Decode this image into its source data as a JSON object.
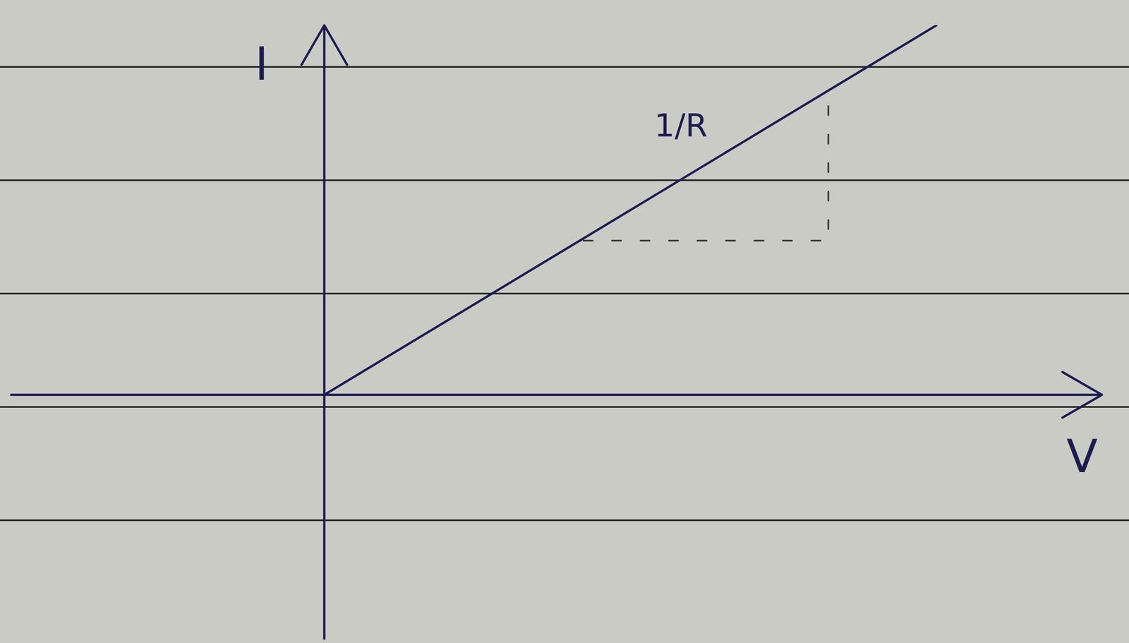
{
  "chart_data": {
    "type": "line",
    "x_label": "V",
    "y_label": "I",
    "annotation": "1/R",
    "xlim": [
      -4.35,
      10.8
    ],
    "ylim": [
      -3.4,
      5.15
    ],
    "xticks": [],
    "yticks": [],
    "tick_labels": false,
    "grid": false,
    "series": [
      {
        "x": [
          0,
          8.5
        ],
        "values": [
          0,
          5.15
        ],
        "color": "#1c1c50",
        "line_style": "solid"
      },
      {
        "x": [
          3.6,
          7.0,
          7.0
        ],
        "values": [
          2.15,
          2.15,
          4.2
        ],
        "color": "#3a3a3a",
        "line_style": "dashed"
      }
    ]
  }
}
